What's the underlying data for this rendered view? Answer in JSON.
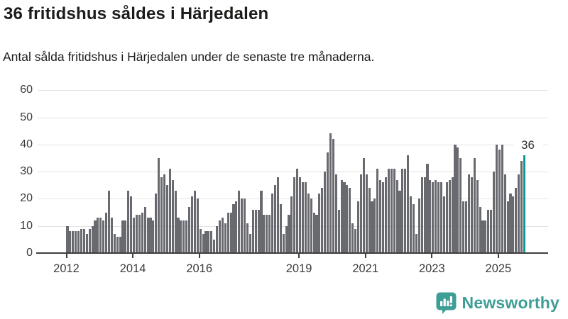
{
  "header": {
    "title": "36 fritidshus såldes i Härjedalen",
    "subtitle": "Antal sålda fritidshus i Härjedalen under de senaste tre månaderna."
  },
  "footer": {
    "brand": "Newsworthy",
    "logo_icon": "newsworthy-speech-bubble-bar-chart-icon"
  },
  "colors": {
    "bar": "#696a70",
    "highlight": "#11979b",
    "grid": "#e3e3e3",
    "axis": "#3f3f3f",
    "tick_label": "#3c3c3c",
    "title": "#1c1c1a",
    "brand": "#3d9e96"
  },
  "chart_data": {
    "type": "bar",
    "title": "36 fritidshus såldes i Härjedalen",
    "subtitle": "Antal sålda fritidshus i Härjedalen under de senaste tre månaderna.",
    "x_unit": "month",
    "x_start": "2012-01",
    "x_end": "2025-10",
    "values": [
      10,
      8,
      8,
      8,
      8,
      9,
      9,
      7,
      9,
      10,
      12,
      13,
      13,
      12,
      15,
      23,
      13,
      7,
      6,
      6,
      12,
      12,
      23,
      21,
      13,
      14,
      14,
      15,
      17,
      13,
      13,
      12,
      22,
      35,
      28,
      29,
      25,
      31,
      27,
      23,
      13,
      12,
      12,
      12,
      17,
      21,
      23,
      20,
      9,
      7,
      8,
      8,
      8,
      5,
      10,
      12,
      13,
      11,
      15,
      15,
      18,
      19,
      23,
      20,
      20,
      11,
      7,
      16,
      16,
      16,
      23,
      14,
      14,
      14,
      22,
      25,
      28,
      18,
      7,
      10,
      14,
      21,
      28,
      31,
      28,
      26,
      26,
      22,
      20,
      15,
      14,
      22,
      24,
      30,
      37,
      44,
      42,
      29,
      16,
      27,
      26,
      25,
      24,
      11,
      9,
      19,
      29,
      35,
      29,
      24,
      19,
      20,
      31,
      27,
      26,
      28,
      31,
      31,
      31,
      27,
      23,
      31,
      31,
      36,
      21,
      18,
      7,
      20,
      28,
      28,
      33,
      27,
      26,
      27,
      26,
      26,
      21,
      26,
      27,
      28,
      40,
      39,
      35,
      19,
      19,
      29,
      28,
      35,
      27,
      17,
      12,
      12,
      16,
      16,
      30,
      40,
      38,
      40,
      29,
      19,
      22,
      21,
      24,
      29,
      34,
      36
    ],
    "highlight_last": true,
    "highlight_label": "36",
    "yticks": [
      0,
      10,
      20,
      30,
      40,
      50,
      60
    ],
    "ylim": [
      0,
      62
    ],
    "xticks": [
      {
        "label": "2012",
        "month_index": 0
      },
      {
        "label": "2014",
        "month_index": 24
      },
      {
        "label": "2016",
        "month_index": 48
      },
      {
        "label": "2019",
        "month_index": 84
      },
      {
        "label": "2021",
        "month_index": 108
      },
      {
        "label": "2023",
        "month_index": 132
      },
      {
        "label": "2025",
        "month_index": 156
      }
    ],
    "grid": "horizontal-only",
    "legend": "none"
  }
}
